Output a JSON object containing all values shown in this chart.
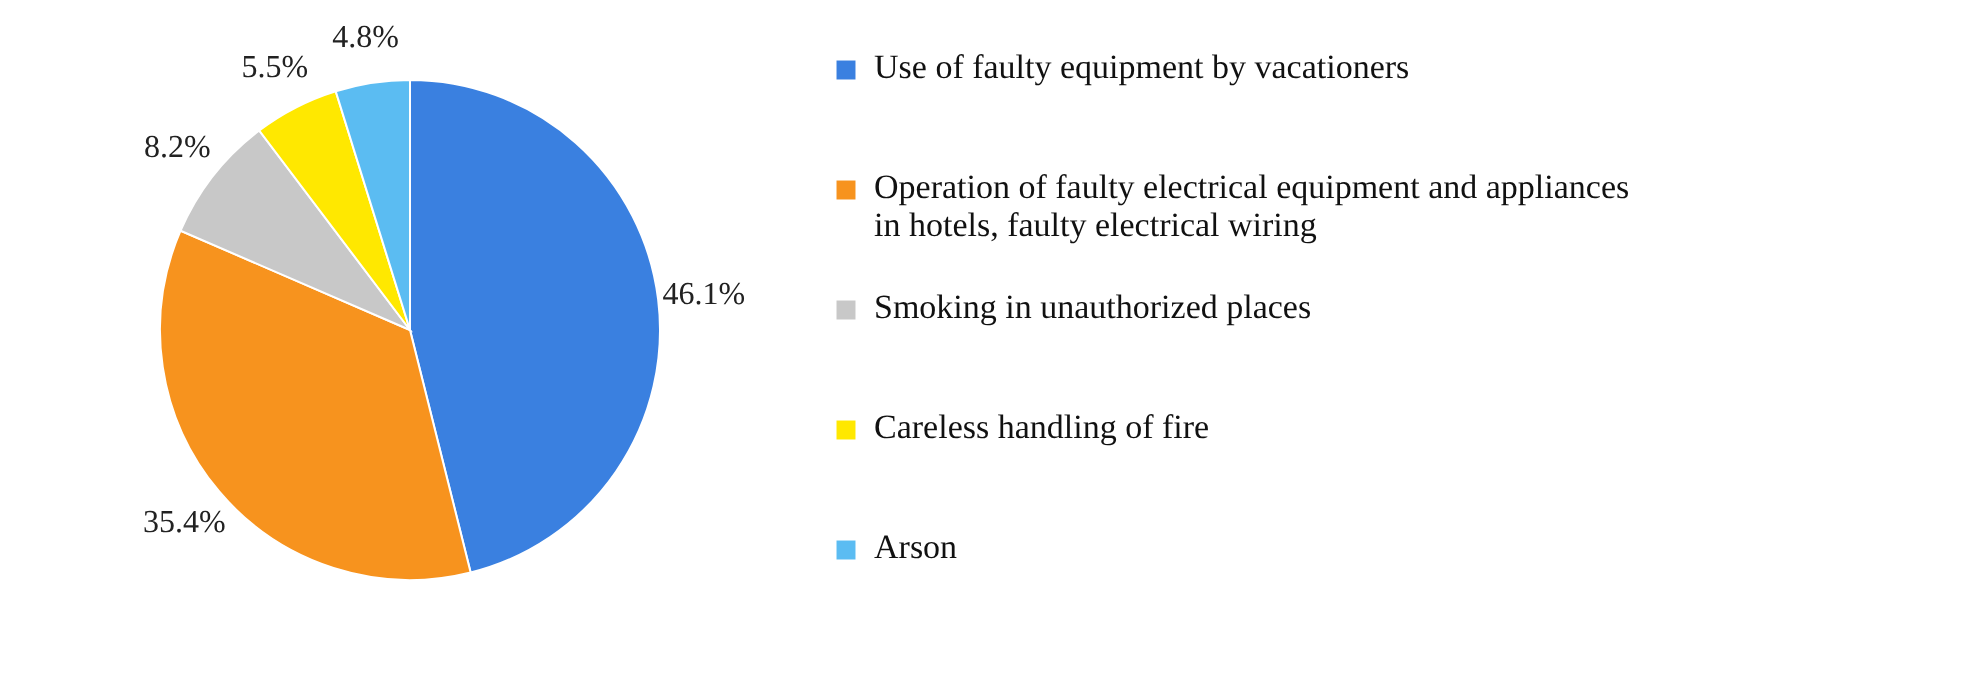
{
  "chart_data": {
    "type": "pie",
    "categories": [
      "Use of faulty equipment by vacationers",
      "Operation of faulty electrical equipment and appliances in hotels, faulty electrical wiring",
      "Smoking in unauthorized places",
      "Careless handling of fire",
      "Arson"
    ],
    "values": [
      46.1,
      35.4,
      8.2,
      5.5,
      4.8
    ],
    "value_labels": [
      "46.1%",
      "35.4%",
      "8.2%",
      "5.5%",
      "4.8%"
    ],
    "colors": [
      "#3a80e0",
      "#f7931e",
      "#c8c8c8",
      "#ffe800",
      "#5bbcf2"
    ],
    "legend": "right"
  }
}
